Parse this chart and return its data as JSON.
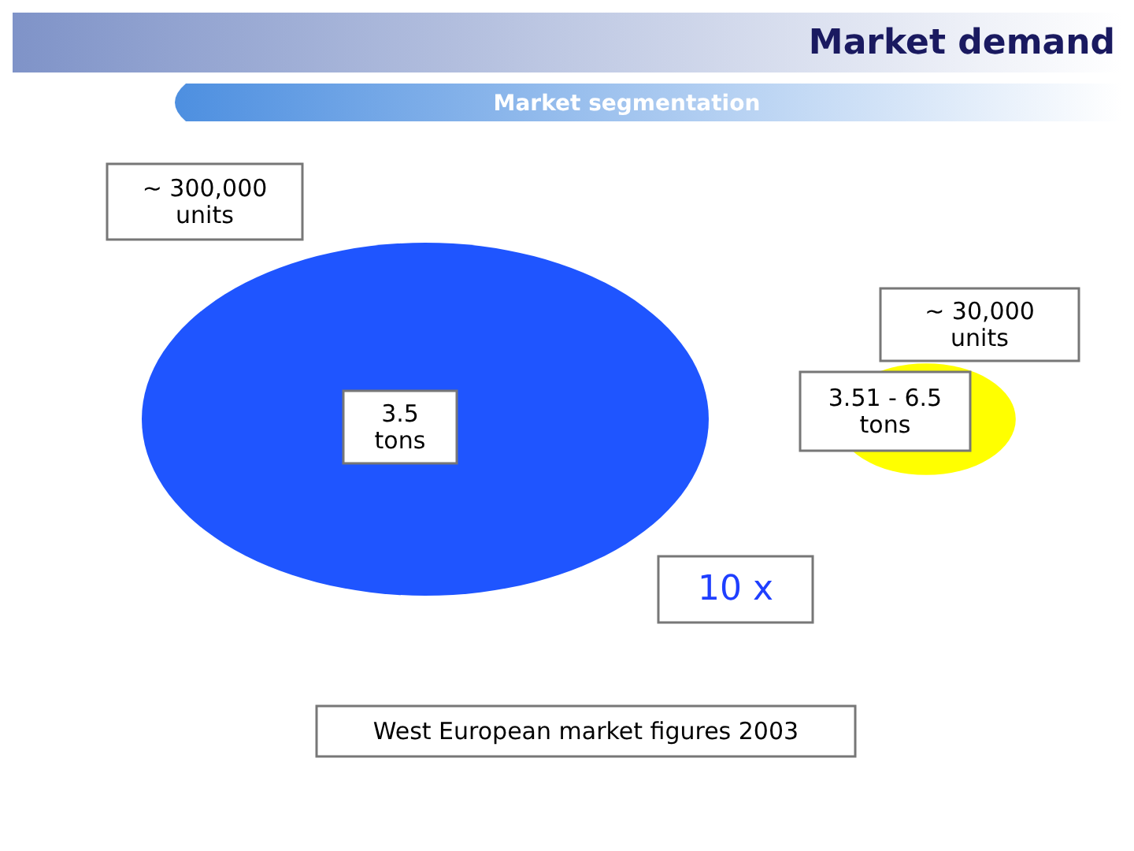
{
  "chart_data": {
    "type": "other",
    "title": "Market demand",
    "subtitle": "Market segmentation",
    "categories": [
      "3.5 tons",
      "3.51 - 6.5 tons"
    ],
    "values": [
      300000,
      30000
    ],
    "value_labels": [
      "~ 300,000 units",
      "~ 30,000 units"
    ],
    "colors": [
      "#1f55ff",
      "#ffff00"
    ],
    "annotations": [
      "10 x",
      "West European market figures 2003"
    ]
  }
}
